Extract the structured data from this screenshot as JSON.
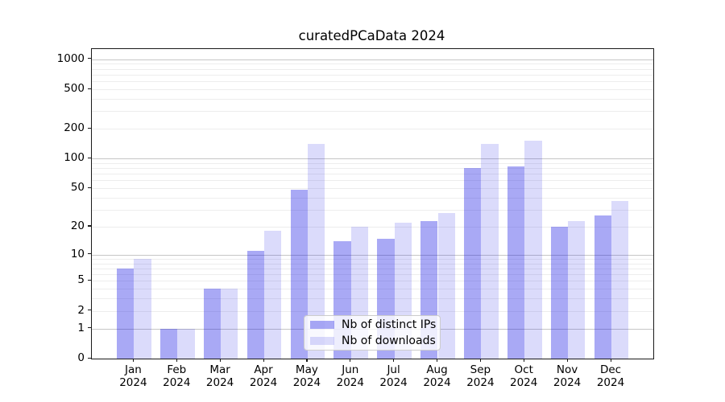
{
  "chart_data": {
    "type": "bar",
    "title": "curatedPCaData 2024",
    "categories": [
      "Jan",
      "Feb",
      "Mar",
      "Apr",
      "May",
      "Jun",
      "Jul",
      "Aug",
      "Sep",
      "Oct",
      "Nov",
      "Dec"
    ],
    "year": "2024",
    "series": [
      {
        "name": "Nb of distinct IPs",
        "color": "rgba(30,30,230,0.38)",
        "values": [
          7,
          1,
          4,
          11,
          48,
          14,
          15,
          23,
          80,
          83,
          20,
          26
        ]
      },
      {
        "name": "Nb of downloads",
        "color": "rgba(30,30,230,0.16)",
        "values": [
          9,
          1,
          4,
          18,
          140,
          20,
          22,
          28,
          140,
          152,
          23,
          37
        ]
      }
    ],
    "xlabel": "",
    "ylabel": "",
    "yscale": "log1p",
    "ylim": [
      0,
      1265
    ],
    "yticks": [
      {
        "value": 0,
        "label": "0"
      },
      {
        "value": 1,
        "label": "1"
      },
      {
        "value": 2,
        "label": "2"
      },
      {
        "value": 5,
        "label": "5"
      },
      {
        "value": 10,
        "label": "10"
      },
      {
        "value": 20,
        "label": "20"
      },
      {
        "value": 50,
        "label": "50"
      },
      {
        "value": 100,
        "label": "100"
      },
      {
        "value": 200,
        "label": "200"
      },
      {
        "value": 500,
        "label": "500"
      },
      {
        "value": 1000,
        "label": "1000"
      }
    ],
    "grid": "horizontal, log minor + major decade lines",
    "legend_position": "lower center"
  }
}
